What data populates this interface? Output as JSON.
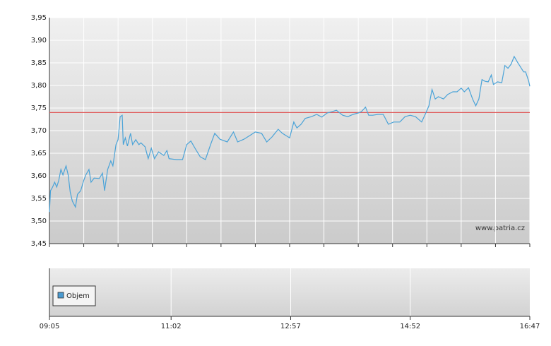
{
  "chart_data": [
    {
      "type": "line",
      "xlim": [
        "09:05",
        "16:47"
      ],
      "xgrid": [
        "09:05",
        "09:38",
        "10:11",
        "10:44",
        "11:17",
        "11:50",
        "12:23",
        "12:56",
        "13:29",
        "14:02",
        "14:35",
        "15:08",
        "15:41",
        "16:14",
        "16:47"
      ],
      "ylim": [
        3.45,
        3.95
      ],
      "yticks": [
        {
          "value": 3.45,
          "label": "3,45"
        },
        {
          "value": 3.5,
          "label": "3,50"
        },
        {
          "value": 3.55,
          "label": "3,55"
        },
        {
          "value": 3.6,
          "label": "3,60"
        },
        {
          "value": 3.65,
          "label": "3,65"
        },
        {
          "value": 3.7,
          "label": "3,70"
        },
        {
          "value": 3.75,
          "label": "3,75"
        },
        {
          "value": 3.8,
          "label": "3,80"
        },
        {
          "value": 3.85,
          "label": "3,85"
        },
        {
          "value": 3.9,
          "label": "3,90"
        },
        {
          "value": 3.95,
          "label": "3,95"
        }
      ],
      "grid": true,
      "reference": {
        "value": 3.74,
        "color": "#e05a5a"
      },
      "source": "www.patria.cz",
      "series": [
        {
          "color": "#4aa3d8",
          "x": [
            "09:05",
            "09:06",
            "09:08",
            "09:10",
            "09:12",
            "09:14",
            "09:16",
            "09:18",
            "09:21",
            "09:23",
            "09:25",
            "09:27",
            "09:30",
            "09:32",
            "09:35",
            "09:38",
            "09:40",
            "09:43",
            "09:45",
            "09:48",
            "09:53",
            "09:56",
            "09:58",
            "10:01",
            "10:04",
            "10:06",
            "10:09",
            "10:11",
            "10:13",
            "10:15",
            "10:16",
            "10:18",
            "10:20",
            "10:23",
            "10:25",
            "10:28",
            "10:31",
            "10:33",
            "10:37",
            "10:40",
            "10:43",
            "10:46",
            "10:50",
            "10:55",
            "10:58",
            "11:00",
            "11:07",
            "11:13",
            "11:17",
            "11:21",
            "11:25",
            "11:30",
            "11:35",
            "11:40",
            "11:44",
            "11:49",
            "11:56",
            "12:02",
            "12:06",
            "12:12",
            "12:19",
            "12:23",
            "12:29",
            "12:34",
            "12:39",
            "12:45",
            "12:49",
            "12:56",
            "13:00",
            "13:03",
            "13:07",
            "13:11",
            "13:17",
            "13:22",
            "13:27",
            "13:32",
            "13:37",
            "13:41",
            "13:47",
            "13:52",
            "13:57",
            "14:02",
            "14:05",
            "14:09",
            "14:12",
            "14:16",
            "14:21",
            "14:26",
            "14:31",
            "14:36",
            "14:42",
            "14:47",
            "14:52",
            "14:57",
            "15:03",
            "15:07",
            "15:10",
            "15:13",
            "15:16",
            "15:19",
            "15:24",
            "15:28",
            "15:33",
            "15:37",
            "15:41",
            "15:44",
            "15:48",
            "15:52",
            "15:55",
            "15:58",
            "16:01",
            "16:04",
            "16:07",
            "16:10",
            "16:12",
            "16:16",
            "16:20",
            "16:23",
            "16:26",
            "16:29",
            "16:32",
            "16:35",
            "16:38",
            "16:41",
            "16:43",
            "16:46",
            "16:47"
          ],
          "values": [
            3.52,
            3.567,
            3.575,
            3.586,
            3.575,
            3.59,
            3.614,
            3.602,
            3.622,
            3.602,
            3.564,
            3.544,
            3.531,
            3.559,
            3.567,
            3.59,
            3.602,
            3.614,
            3.586,
            3.595,
            3.594,
            3.606,
            3.567,
            3.614,
            3.633,
            3.622,
            3.669,
            3.68,
            3.731,
            3.734,
            3.669,
            3.684,
            3.666,
            3.694,
            3.669,
            3.68,
            3.669,
            3.673,
            3.664,
            3.638,
            3.661,
            3.638,
            3.653,
            3.645,
            3.656,
            3.638,
            3.636,
            3.636,
            3.669,
            3.677,
            3.661,
            3.642,
            3.636,
            3.669,
            3.694,
            3.681,
            3.675,
            3.697,
            3.675,
            3.681,
            3.691,
            3.697,
            3.694,
            3.675,
            3.686,
            3.703,
            3.694,
            3.684,
            3.719,
            3.706,
            3.714,
            3.727,
            3.731,
            3.736,
            3.73,
            3.739,
            3.742,
            3.745,
            3.734,
            3.731,
            3.736,
            3.739,
            3.742,
            3.752,
            3.734,
            3.734,
            3.736,
            3.736,
            3.714,
            3.719,
            3.719,
            3.731,
            3.734,
            3.731,
            3.719,
            3.739,
            3.755,
            3.791,
            3.77,
            3.775,
            3.77,
            3.78,
            3.786,
            3.786,
            3.794,
            3.786,
            3.795,
            3.77,
            3.755,
            3.77,
            3.813,
            3.809,
            3.808,
            3.823,
            3.802,
            3.808,
            3.806,
            3.844,
            3.838,
            3.847,
            3.864,
            3.852,
            3.841,
            3.83,
            3.83,
            3.809,
            3.798
          ]
        }
      ]
    },
    {
      "type": "bar",
      "xlim": [
        "09:05",
        "16:47"
      ],
      "xticks": [
        "09:05",
        "11:02",
        "12:57",
        "14:52",
        "16:47"
      ],
      "series": [
        {
          "name": "Objem",
          "color": "#4a9ad0",
          "values": []
        }
      ]
    }
  ]
}
